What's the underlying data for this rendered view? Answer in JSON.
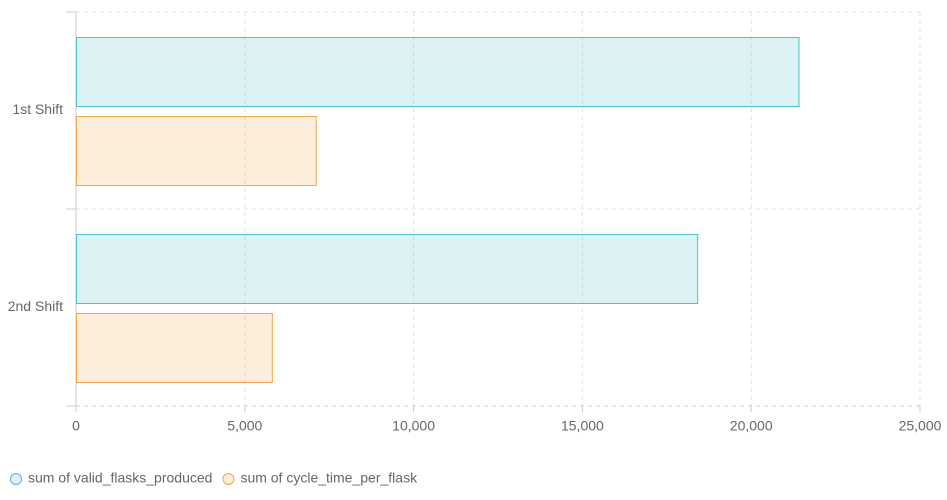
{
  "chart_data": {
    "type": "bar",
    "categories": [
      "1st Shift",
      "2nd Shift"
    ],
    "series": [
      {
        "name": "sum of valid_flasks_produced",
        "color": "#4fc0c8",
        "values": [
          21400,
          18400
        ]
      },
      {
        "name": "sum of cycle_time_per_flask",
        "color": "#f3a54a",
        "values": [
          7100,
          5800
        ]
      }
    ],
    "xlim": [
      0,
      25000
    ],
    "xticks": [
      0,
      {
        "value": 5000,
        "label": "5,000"
      },
      {
        "value": 10000,
        "label": "10,000"
      },
      {
        "value": 15000,
        "label": "15,000"
      },
      {
        "value": 20000,
        "label": "20,000"
      },
      {
        "value": 25000,
        "label": "25,000"
      }
    ],
    "grid": true,
    "legend": "bottom"
  }
}
